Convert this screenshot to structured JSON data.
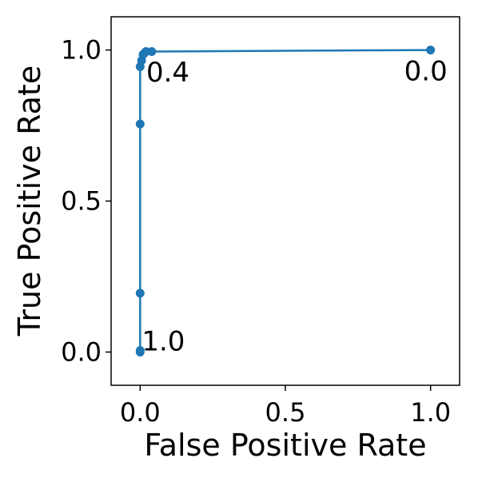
{
  "chart_data": {
    "type": "line",
    "xlabel": "False Positive Rate",
    "ylabel": "True Positive Rate",
    "xlim": [
      -0.1,
      1.1
    ],
    "ylim": [
      -0.11,
      1.11
    ],
    "xticks": [
      0.0,
      0.5,
      1.0
    ],
    "yticks": [
      0.0,
      0.5,
      1.0
    ],
    "xtick_labels": [
      "0.0",
      "0.5",
      "1.0"
    ],
    "ytick_labels": [
      "0.0",
      "0.5",
      "1.0"
    ],
    "grid": false,
    "color": "#1f77b4",
    "series": [
      {
        "x": [
          0.0,
          0.0,
          0.0,
          0.0,
          0.0,
          0.005,
          0.01,
          0.015,
          0.02,
          0.04,
          1.0
        ],
        "y": [
          0.0,
          0.005,
          0.195,
          0.755,
          0.945,
          0.965,
          0.985,
          0.99,
          0.995,
          0.995,
          1.0
        ]
      }
    ],
    "annotations": [
      {
        "text": "1.0",
        "x": 0.0,
        "y": 0.0,
        "anchor": "start",
        "dx": 2,
        "dy": -2
      },
      {
        "text": "0.4",
        "x": 0.01,
        "y": 0.985,
        "anchor": "start",
        "dx": 4,
        "dy": 34
      },
      {
        "text": "0.0",
        "x": 1.0,
        "y": 1.0,
        "anchor": "middle",
        "dx": -6,
        "dy": 38
      }
    ]
  }
}
